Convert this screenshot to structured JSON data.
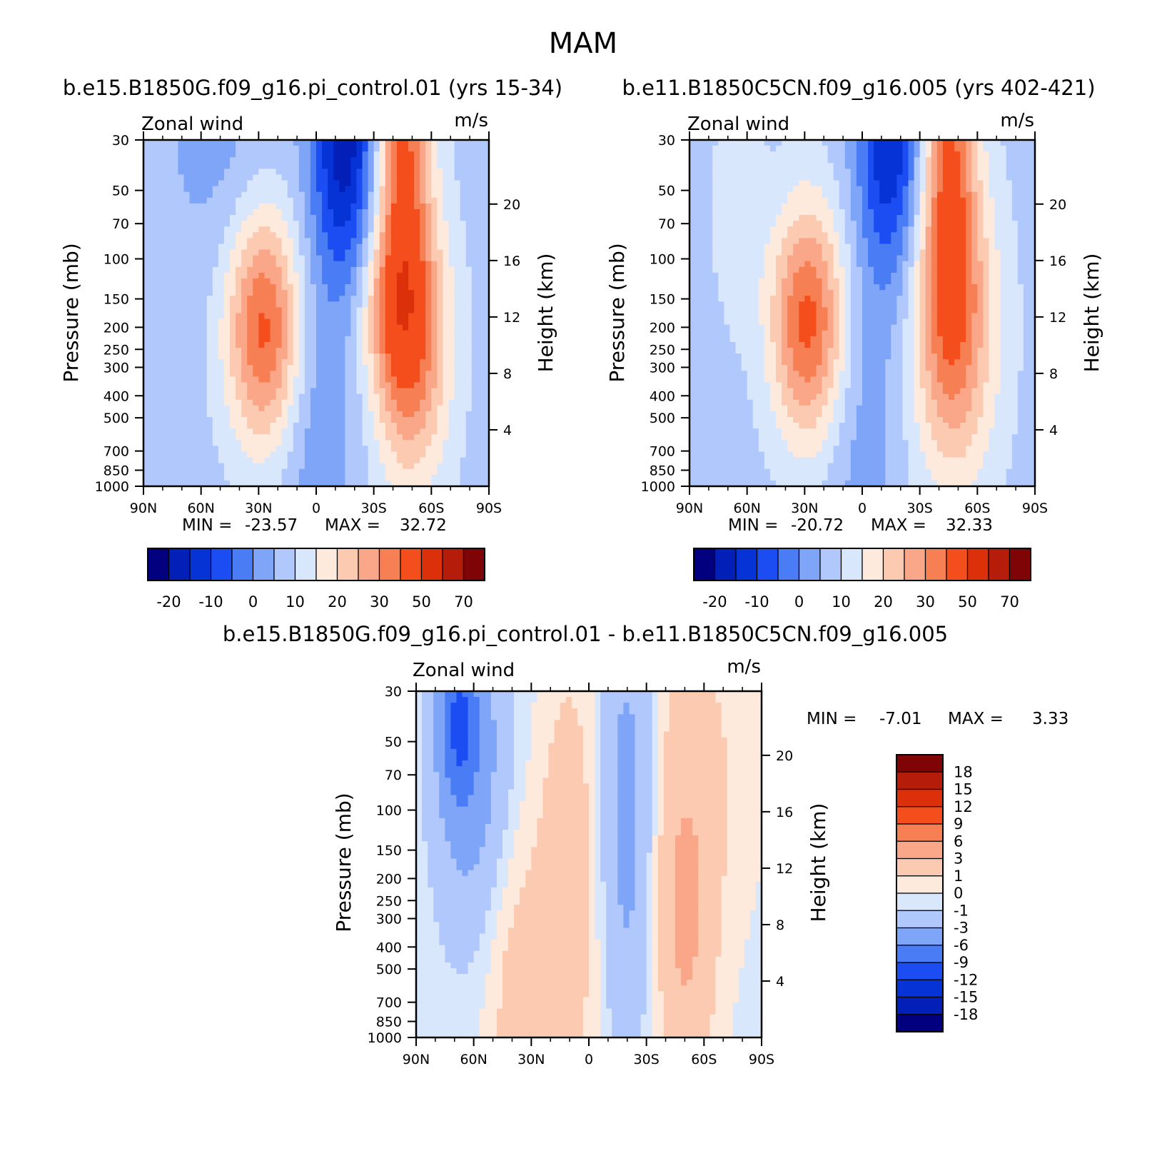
{
  "figure_title": "MAM",
  "colors": {
    "abs_palette": [
      "#03007f",
      "#0220b8",
      "#0633d6",
      "#1b4df3",
      "#4a7df5",
      "#7fa5f8",
      "#b0c8fb",
      "#d9e7fd",
      "#fdeadc",
      "#fccab0",
      "#f9a689",
      "#f77f54",
      "#f44e1d",
      "#dc300b",
      "#b51c0a",
      "#7e0405"
    ],
    "diff_palette": [
      "#03007f",
      "#0220b8",
      "#0633d6",
      "#1b4df3",
      "#4a7df5",
      "#7fa5f8",
      "#b0c8fb",
      "#d9e7fd",
      "#fdeadc",
      "#fccab0",
      "#f9a689",
      "#f77f54",
      "#f44e1d",
      "#dc300b",
      "#b51c0a",
      "#7e0405"
    ]
  },
  "chart_data": [
    {
      "id": "panel1",
      "type": "heatmap",
      "title": "b.e15.B1850G.f09_g16.pi_control.01 (yrs 15-34)",
      "left_label": "Zonal wind",
      "right_label": "m/s",
      "ylabel": "Pressure (mb)",
      "y2label": "Height (km)",
      "xticks": [
        "90N",
        "60N",
        "30N",
        "0",
        "30S",
        "60S",
        "90S"
      ],
      "yticks": [
        "30",
        "50",
        "70",
        "100",
        "150",
        "200",
        "250",
        "300",
        "400",
        "500",
        "700",
        "850",
        "1000"
      ],
      "y2ticks": [
        "20",
        "16",
        "12",
        "8",
        "4"
      ],
      "min_label": "MIN =",
      "min_value": "-23.57",
      "max_label": "MAX =",
      "max_value": "32.72",
      "colorbar_labels": [
        "-20",
        "-10",
        "0",
        "10",
        "20",
        "30",
        "50",
        "70"
      ],
      "levels": [
        -25,
        -20,
        -15,
        -10,
        -5,
        0,
        5,
        10,
        15,
        20,
        25,
        30,
        40,
        50,
        60,
        70
      ],
      "field": {
        "base": 3,
        "blobs": [
          {
            "lat": 27,
            "p": 200,
            "amp": 29,
            "slat": 14,
            "sz": 0.85
          },
          {
            "lat": -50,
            "p": 230,
            "amp": 24,
            "slat": 14,
            "sz": 1.0
          },
          {
            "lat": -35,
            "p": 170,
            "amp": 8,
            "slat": 11,
            "sz": 0.55
          },
          {
            "lat": -45,
            "p": 30,
            "amp": 26,
            "slat": 10,
            "sz": 1.4
          },
          {
            "lat": -15,
            "p": 30,
            "amp": -26,
            "slat": 12,
            "sz": 1.0
          },
          {
            "lat": 0,
            "p": 500,
            "amp": -7,
            "slat": 14,
            "sz": 1.4
          },
          {
            "lat": 50,
            "p": 30,
            "amp": -5,
            "slat": 22,
            "sz": 1.0
          }
        ]
      }
    },
    {
      "id": "panel2",
      "type": "heatmap",
      "title": "b.e11.B1850C5CN.f09_g16.005 (yrs 402-421)",
      "left_label": "Zonal wind",
      "right_label": "m/s",
      "ylabel": "Pressure (mb)",
      "y2label": "Height (km)",
      "xticks": [
        "90N",
        "60N",
        "30N",
        "0",
        "30S",
        "60S",
        "90S"
      ],
      "yticks": [
        "30",
        "50",
        "70",
        "100",
        "150",
        "200",
        "250",
        "300",
        "400",
        "500",
        "700",
        "850",
        "1000"
      ],
      "y2ticks": [
        "20",
        "16",
        "12",
        "8",
        "4"
      ],
      "min_label": "MIN =",
      "min_value": "-20.72",
      "max_label": "MAX =",
      "max_value": "32.33",
      "colorbar_labels": [
        "-20",
        "-10",
        "0",
        "10",
        "20",
        "30",
        "50",
        "70"
      ],
      "levels": [
        -25,
        -20,
        -15,
        -10,
        -5,
        0,
        5,
        10,
        15,
        20,
        25,
        30,
        40,
        50,
        60,
        70
      ],
      "field": {
        "base": 3,
        "blobs": [
          {
            "lat": 28,
            "p": 190,
            "amp": 29,
            "slat": 14,
            "sz": 0.85
          },
          {
            "lat": -48,
            "p": 200,
            "amp": 22,
            "slat": 16,
            "sz": 1.1
          },
          {
            "lat": -45,
            "p": 30,
            "amp": 24,
            "slat": 10,
            "sz": 1.4
          },
          {
            "lat": -15,
            "p": 30,
            "amp": -23,
            "slat": 12,
            "sz": 1.0
          },
          {
            "lat": 0,
            "p": 500,
            "amp": -6,
            "slat": 14,
            "sz": 1.4
          },
          {
            "lat": 65,
            "p": 60,
            "amp": 6,
            "slat": 9,
            "sz": 0.8
          }
        ]
      }
    },
    {
      "id": "panel3",
      "type": "heatmap",
      "title": "b.e15.B1850G.f09_g16.pi_control.01 - b.e11.B1850C5CN.f09_g16.005",
      "left_label": "Zonal wind",
      "right_label": "m/s",
      "ylabel": "Pressure (mb)",
      "y2label": "Height (km)",
      "xticks": [
        "90N",
        "60N",
        "30N",
        "0",
        "30S",
        "60S",
        "90S"
      ],
      "yticks": [
        "30",
        "50",
        "70",
        "100",
        "150",
        "200",
        "250",
        "300",
        "400",
        "500",
        "700",
        "850",
        "1000"
      ],
      "y2ticks": [
        "20",
        "16",
        "12",
        "8",
        "4"
      ],
      "min_label": "MIN =",
      "min_value": "-7.01",
      "max_label": "MAX =",
      "max_value": "3.33",
      "colorbar_labels": [
        "18",
        "15",
        "12",
        "9",
        "6",
        "3",
        "1",
        "0",
        "-1",
        "-3",
        "-6",
        "-9",
        "-12",
        "-15",
        "-18"
      ],
      "levels": [
        -18,
        -15,
        -12,
        -9,
        -6,
        -3,
        -1,
        0,
        1,
        3,
        6,
        9,
        12,
        15,
        18
      ],
      "field": {
        "base": -0.3,
        "blobs": [
          {
            "lat": 68,
            "p": 40,
            "amp": -7,
            "slat": 7,
            "sz": 0.6
          },
          {
            "lat": 60,
            "p": 70,
            "amp": -4,
            "slat": 14,
            "sz": 1.2
          },
          {
            "lat": 10,
            "p": 200,
            "amp": 2.5,
            "slat": 12,
            "sz": 1.6
          },
          {
            "lat": -50,
            "p": 350,
            "amp": 3.3,
            "slat": 11,
            "sz": 1.2
          },
          {
            "lat": 40,
            "p": 500,
            "amp": 2,
            "slat": 12,
            "sz": 1.3
          },
          {
            "lat": -20,
            "p": 100,
            "amp": -4,
            "slat": 10,
            "sz": 1.6
          },
          {
            "lat": -55,
            "p": 60,
            "amp": 1.5,
            "slat": 22,
            "sz": 1.3
          }
        ]
      }
    }
  ]
}
